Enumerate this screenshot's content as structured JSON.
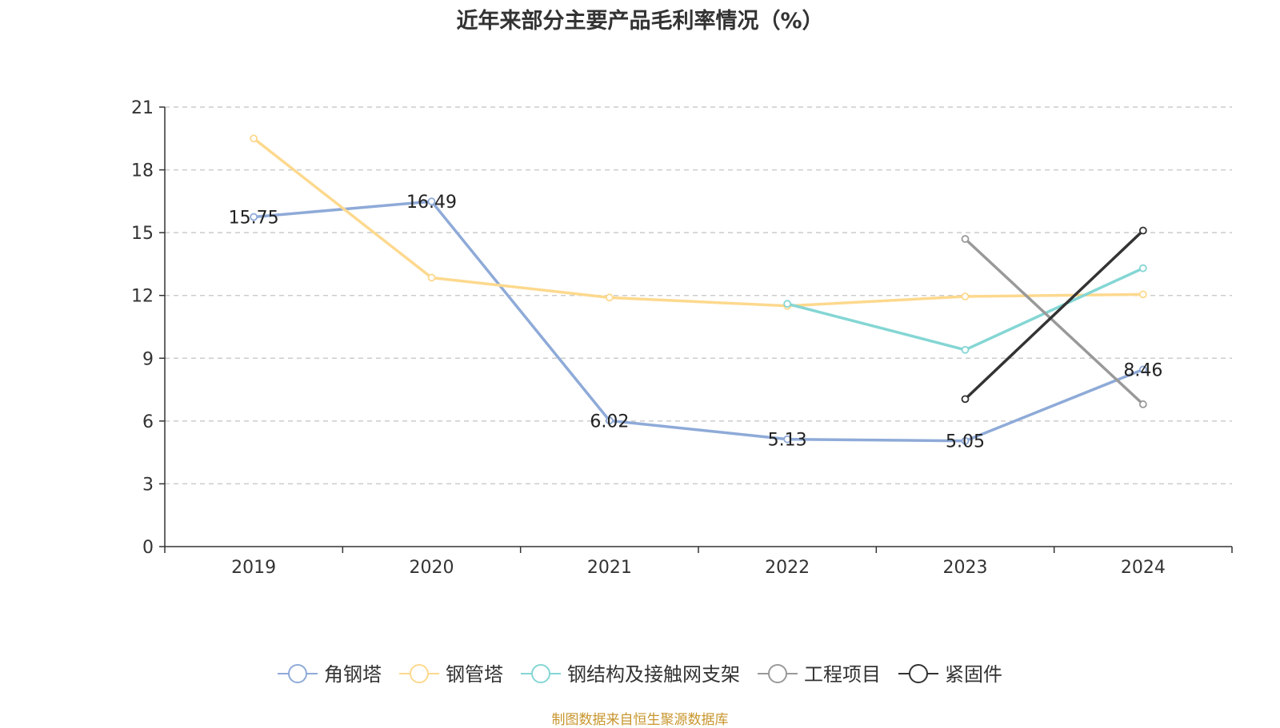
{
  "title": "近年来部分主要产品毛利率情况（%）",
  "source": "制图数据来自恒生聚源数据库",
  "chart_data": {
    "type": "line",
    "title": "近年来部分主要产品毛利率情况（%）",
    "categories": [
      "2019",
      "2020",
      "2021",
      "2022",
      "2023",
      "2024"
    ],
    "ylim": [
      0,
      21
    ],
    "yticks": [
      0,
      3,
      6,
      9,
      12,
      15,
      18,
      21
    ],
    "grid": true,
    "legend_position": "bottom",
    "series": [
      {
        "name": "角钢塔",
        "color": "#8eaad8",
        "values": [
          15.75,
          16.49,
          6.02,
          5.13,
          5.05,
          8.46
        ],
        "labels": [
          "15.75",
          "16.49",
          "6.02",
          "5.13",
          "5.05",
          "8.46"
        ]
      },
      {
        "name": "钢管塔",
        "color": "#fdd98e",
        "values": [
          19.5,
          12.85,
          11.9,
          11.5,
          11.95,
          12.05
        ]
      },
      {
        "name": "钢结构及接触网支架",
        "color": "#84d6d4",
        "values": [
          null,
          null,
          null,
          11.6,
          9.4,
          13.3
        ]
      },
      {
        "name": "工程项目",
        "color": "#999999",
        "values": [
          null,
          null,
          null,
          null,
          14.7,
          6.8
        ]
      },
      {
        "name": "紧固件",
        "color": "#333333",
        "values": [
          null,
          null,
          null,
          null,
          7.05,
          15.1
        ]
      }
    ]
  }
}
